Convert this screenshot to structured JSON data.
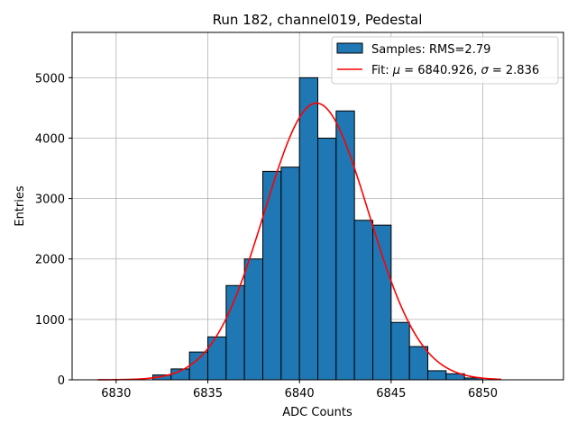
{
  "chart_data": {
    "type": "bar",
    "title": "Run 182, channel019, Pedestal",
    "xlabel": "ADC Counts",
    "ylabel": "Entries",
    "xlim": [
      6827.6,
      6854.4
    ],
    "ylim": [
      0,
      5750
    ],
    "xticks": [
      6830,
      6835,
      6840,
      6845,
      6850
    ],
    "yticks": [
      0,
      1000,
      2000,
      3000,
      4000,
      5000
    ],
    "grid": true,
    "legend_position": "top-right",
    "histogram": {
      "name": "Samples: RMS=2.79",
      "color": "#1f77b4",
      "bin_width": 1,
      "bin_left_edges": [
        6832,
        6833,
        6834,
        6835,
        6836,
        6837,
        6838,
        6839,
        6840,
        6841,
        6842,
        6843,
        6844,
        6845,
        6846,
        6847,
        6848,
        6849
      ],
      "values": [
        80,
        180,
        460,
        710,
        1560,
        2000,
        3450,
        3520,
        5000,
        4000,
        4450,
        2640,
        2560,
        950,
        550,
        150,
        100,
        30
      ]
    },
    "fit": {
      "name": "Fit: μ = 6840.926, σ = 2.836",
      "label_prefix": "Fit: ",
      "mu_symbol": "μ",
      "mu_text": " = 6840.926, ",
      "sigma_symbol": "σ",
      "sigma_text": " = 2.836",
      "color": "#ff0000",
      "mu": 6840.926,
      "sigma": 2.836,
      "amplitude": 4580,
      "x_range": [
        6829,
        6851
      ]
    }
  }
}
